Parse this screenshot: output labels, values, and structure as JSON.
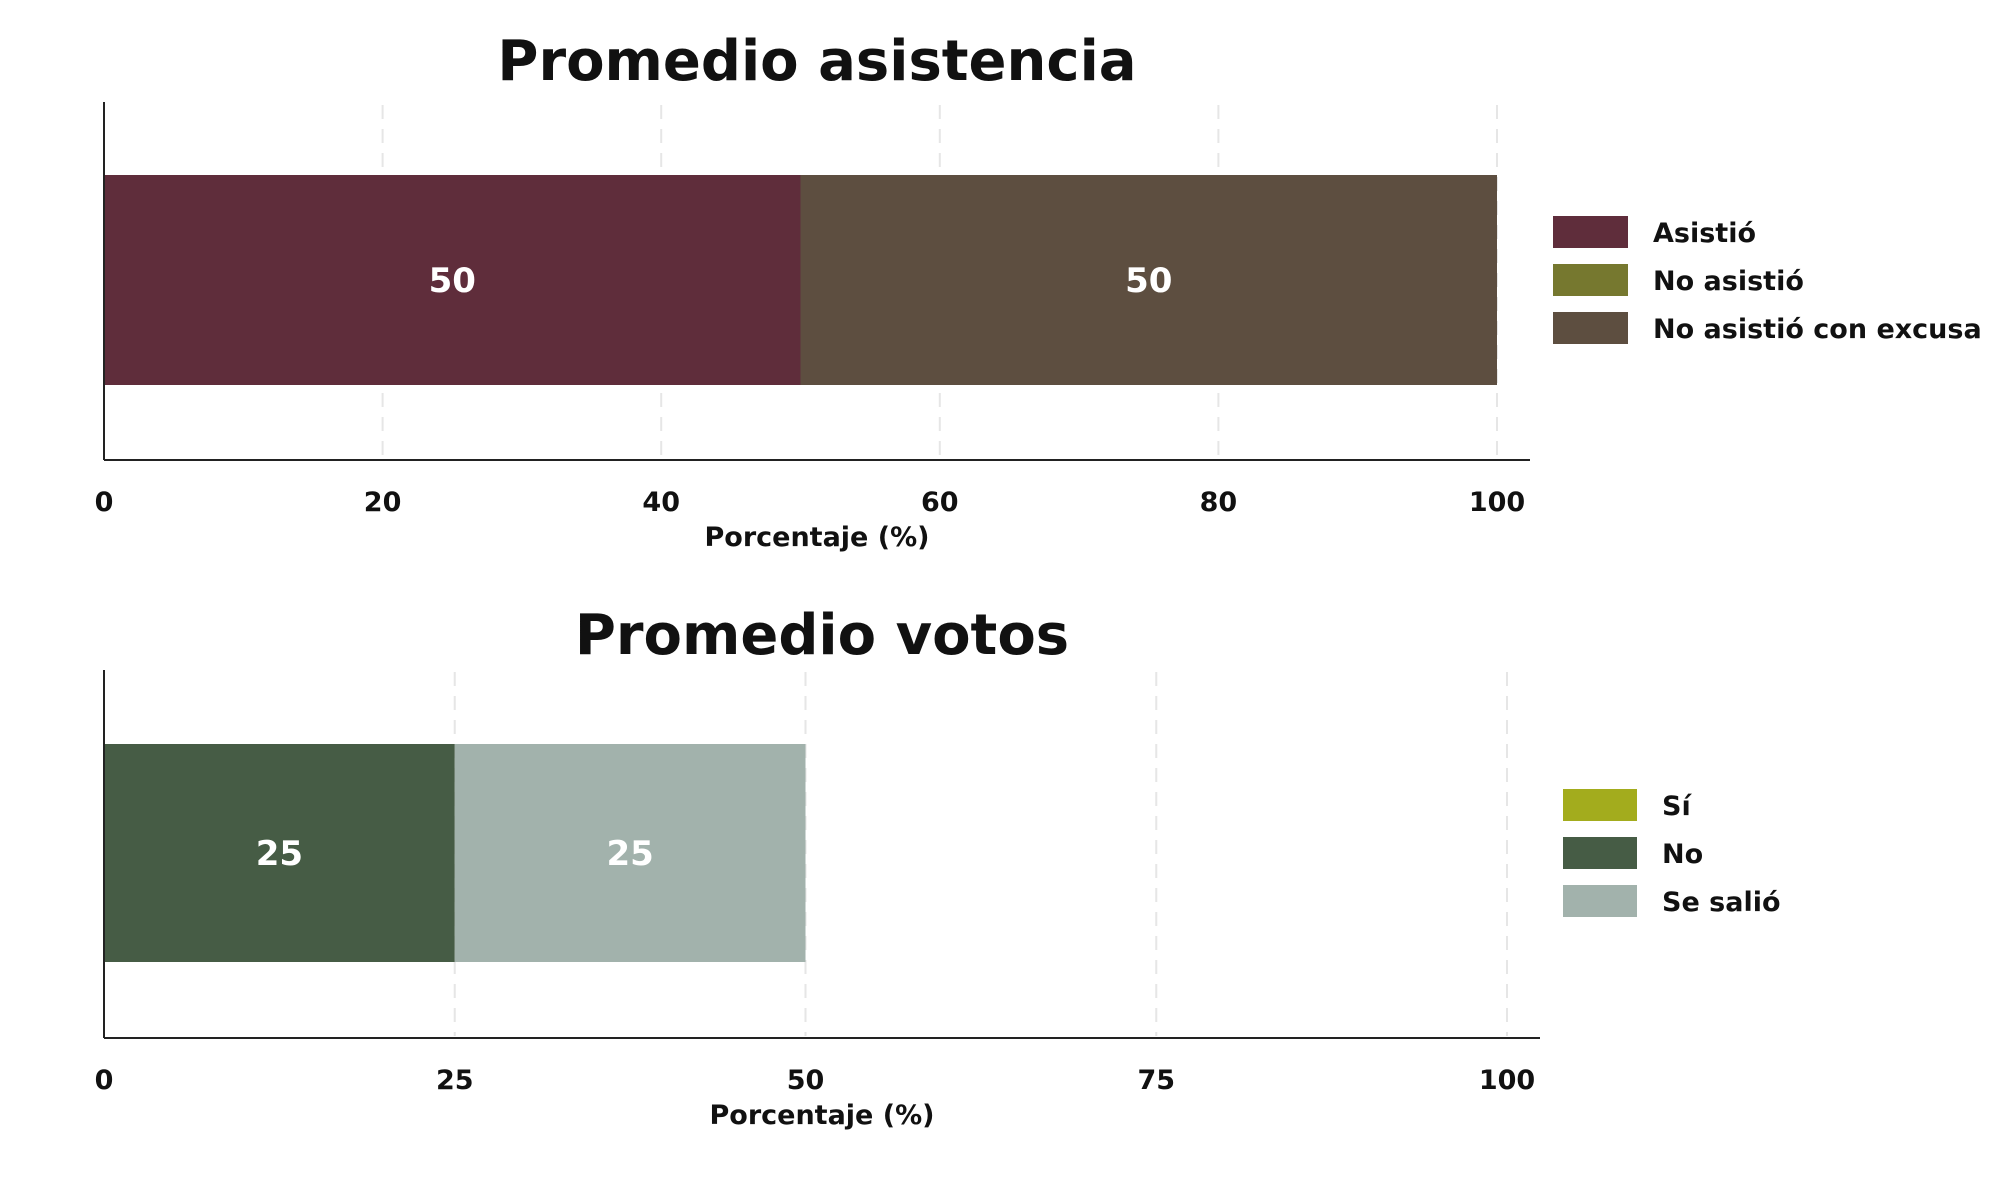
{
  "chart_data": [
    {
      "type": "bar",
      "orientation": "horizontal",
      "stacked": true,
      "title": "Promedio asistencia",
      "xlabel": "Porcentaje (%)",
      "xlim": [
        0,
        100
      ],
      "xticks": [
        0,
        20,
        40,
        60,
        80,
        100
      ],
      "xtick_labels": [
        "0",
        "20",
        "40",
        "60",
        "80",
        "100"
      ],
      "grid": true,
      "legend_position": "right",
      "series": [
        {
          "name": "Asistió",
          "value": 50,
          "label": "50",
          "color": "#5f2d3b"
        },
        {
          "name": "No asistió",
          "value": 0,
          "label": "",
          "color": "#76782f"
        },
        {
          "name": "No asistió con excusa",
          "value": 50,
          "label": "50",
          "color": "#5d4e40"
        }
      ]
    },
    {
      "type": "bar",
      "orientation": "horizontal",
      "stacked": true,
      "title": "Promedio votos",
      "xlabel": "Porcentaje (%)",
      "xlim": [
        0,
        100
      ],
      "xticks": [
        0,
        25,
        50,
        75,
        100
      ],
      "xtick_labels": [
        "0",
        "25",
        "50",
        "75",
        "100"
      ],
      "grid": true,
      "legend_position": "right",
      "series": [
        {
          "name": "Sí",
          "value": 0,
          "label": "",
          "color": "#a3ac1d"
        },
        {
          "name": "No",
          "value": 25,
          "label": "25",
          "color": "#465c45"
        },
        {
          "name": "Se salió",
          "value": 25,
          "label": "25",
          "color": "#a2b2ac"
        }
      ]
    }
  ]
}
